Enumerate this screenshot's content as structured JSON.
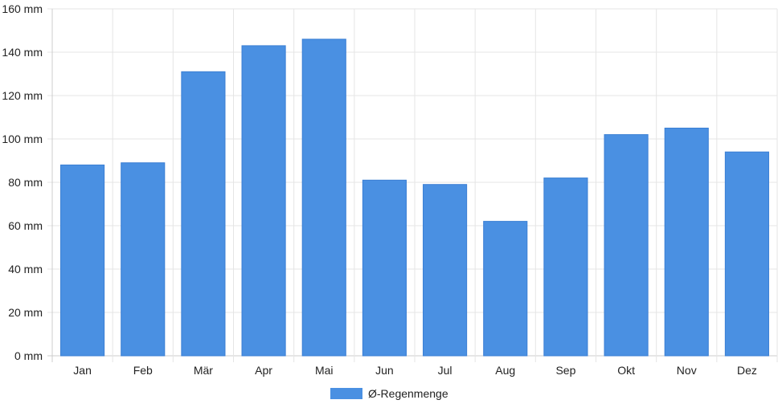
{
  "chart_data": {
    "type": "bar",
    "categories": [
      "Jan",
      "Feb",
      "Mär",
      "Apr",
      "Mai",
      "Jun",
      "Jul",
      "Aug",
      "Sep",
      "Okt",
      "Nov",
      "Dez"
    ],
    "series": [
      {
        "name": "Ø-Regenmenge",
        "values": [
          88,
          89,
          131,
          143,
          146,
          81,
          79,
          62,
          82,
          102,
          105,
          94
        ],
        "color": "#4a90e2"
      }
    ],
    "ylim": [
      0,
      160
    ],
    "yticks": [
      {
        "value": 0,
        "label": "0 mm"
      },
      {
        "value": 20,
        "label": "20 mm"
      },
      {
        "value": 40,
        "label": "40 mm"
      },
      {
        "value": 60,
        "label": "60 mm"
      },
      {
        "value": 80,
        "label": "80 mm"
      },
      {
        "value": 100,
        "label": "100 mm"
      },
      {
        "value": 120,
        "label": "120 mm"
      },
      {
        "value": 140,
        "label": "140 mm"
      },
      {
        "value": 160,
        "label": "160 mm"
      }
    ],
    "grid": true,
    "legend_position": "bottom-center",
    "gridColor": "#e5e5e5",
    "axisColor": "#cccccc"
  }
}
